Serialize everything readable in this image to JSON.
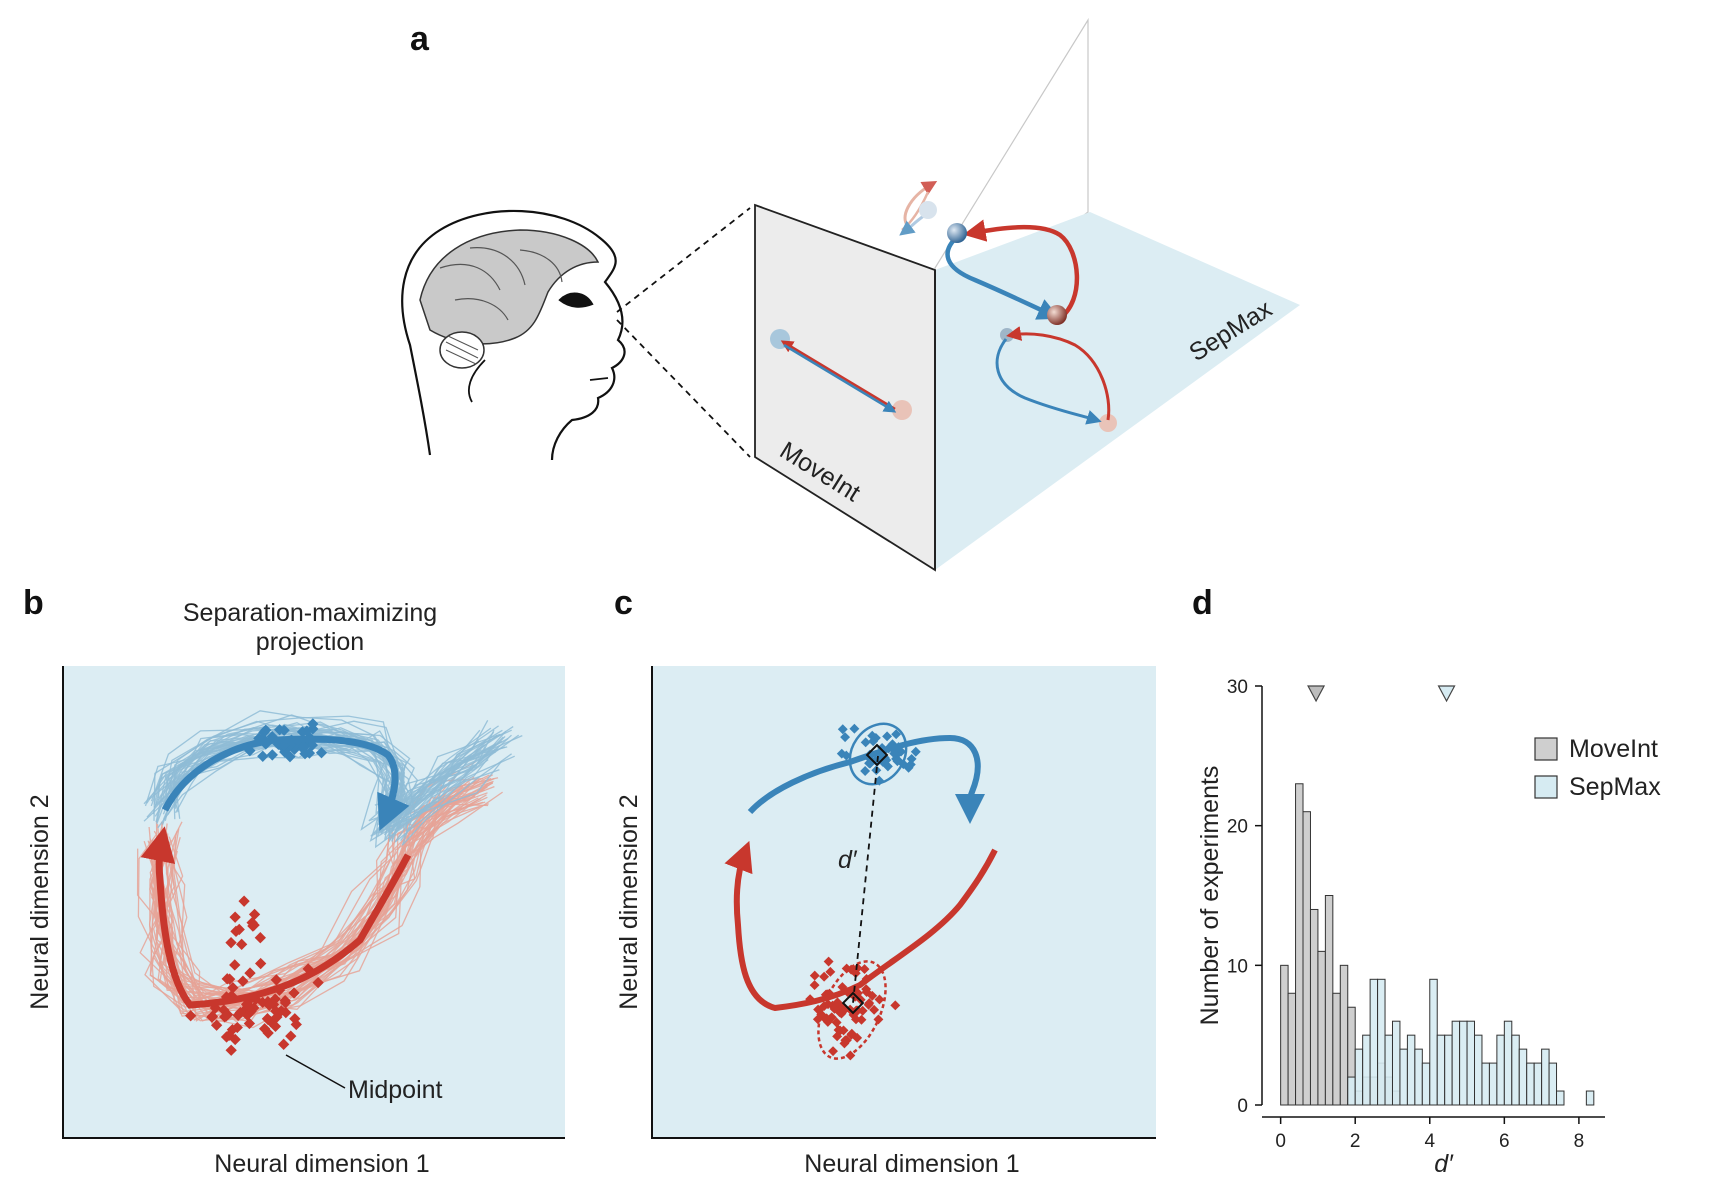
{
  "panels": {
    "a": {
      "label": "a",
      "plane_labels": [
        "MoveInt",
        "SepMax"
      ]
    },
    "b": {
      "label": "b",
      "title_line1": "Separation-maximizing",
      "title_line2": "projection",
      "xlabel": "Neural dimension 1",
      "ylabel": "Neural dimension 2",
      "annotation": "Midpoint"
    },
    "c": {
      "label": "c",
      "xlabel": "Neural dimension 1",
      "ylabel": "Neural dimension 2",
      "annotation": "d′"
    },
    "d": {
      "label": "d"
    }
  },
  "colors": {
    "blue": "#3a84b9",
    "light_blue_traj": "#8fbcd6",
    "red": "#c8372d",
    "light_red_traj": "#e6a396",
    "panel_bg": "#dcedf3",
    "moveint_fill": "#cfcfcf",
    "sepmax_fill": "#d6ebf2"
  },
  "chart_data": {
    "type": "bar",
    "xlabel": "d′",
    "ylabel": "Number of experiments",
    "xlim": [
      -0.5,
      8.7
    ],
    "ylim": [
      0,
      30
    ],
    "xticks": [
      0,
      2,
      4,
      6,
      8
    ],
    "yticks": [
      0,
      10,
      20,
      30
    ],
    "bin_width": 0.2,
    "legend_position": "top-right",
    "series": [
      {
        "name": "MoveInt",
        "bin_starts": [
          0.0,
          0.2,
          0.4,
          0.6,
          0.8,
          1.0,
          1.2,
          1.4,
          1.6,
          1.8,
          2.0,
          2.2,
          2.4,
          2.6,
          2.8,
          3.0
        ],
        "values": [
          10,
          8,
          23,
          21,
          14,
          11,
          15,
          8,
          10,
          7,
          1,
          2,
          2,
          3,
          2,
          1
        ],
        "mean_marker": 0.95
      },
      {
        "name": "SepMax",
        "bin_starts": [
          1.8,
          2.0,
          2.2,
          2.4,
          2.6,
          2.8,
          3.0,
          3.2,
          3.4,
          3.6,
          3.8,
          4.0,
          4.2,
          4.4,
          4.6,
          4.8,
          5.0,
          5.2,
          5.4,
          5.6,
          5.8,
          6.0,
          6.2,
          6.4,
          6.6,
          6.8,
          7.0,
          7.2,
          7.4,
          7.6,
          7.8,
          8.0,
          8.2,
          8.4
        ],
        "values": [
          2,
          4,
          5,
          9,
          9,
          5,
          6,
          4,
          5,
          4,
          3,
          9,
          5,
          5,
          6,
          6,
          6,
          5,
          3,
          3,
          5,
          6,
          5,
          4,
          3,
          3,
          4,
          3,
          1,
          0,
          0,
          0,
          1,
          0
        ],
        "mean_marker": 4.45
      }
    ]
  }
}
